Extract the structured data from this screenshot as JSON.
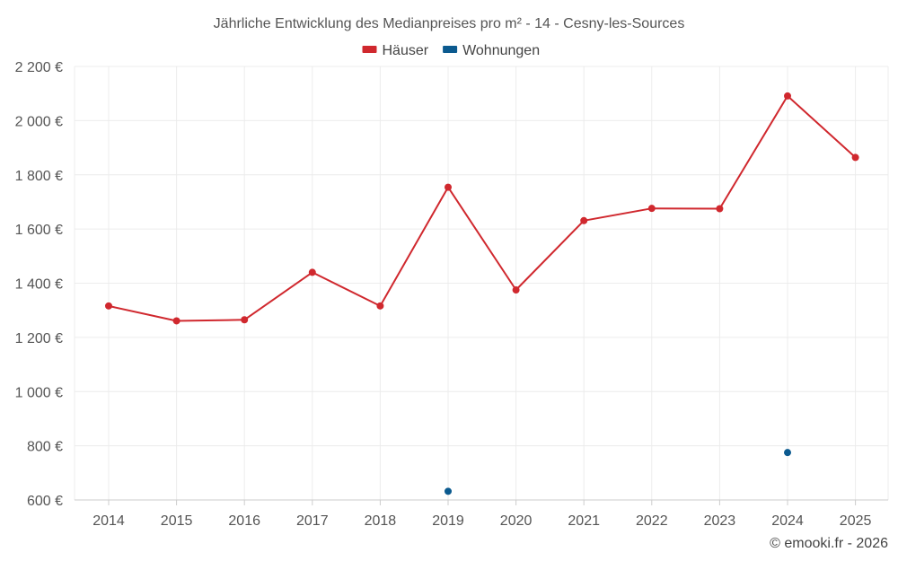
{
  "chart_data": {
    "type": "line",
    "title": "Jährliche Entwicklung des Medianpreises pro m² - 14 - Cesny-les-Sources",
    "x": [
      "2014",
      "2015",
      "2016",
      "2017",
      "2018",
      "2019",
      "2020",
      "2021",
      "2022",
      "2023",
      "2024",
      "2025"
    ],
    "ylim": [
      600,
      2200
    ],
    "yticks": [
      600,
      800,
      1000,
      1200,
      1400,
      1600,
      1800,
      2000,
      2200
    ],
    "ytick_labels": [
      "600 €",
      "800 €",
      "1 000 €",
      "1 200 €",
      "1 400 €",
      "1 600 €",
      "1 800 €",
      "2 000 €",
      "2 200 €"
    ],
    "grid": true,
    "legend_position": "top-center",
    "series": [
      {
        "name": "Häuser",
        "color": "#d0282e",
        "values": [
          1316,
          1261,
          1265,
          1440,
          1316,
          1754,
          1375,
          1631,
          1676,
          1675,
          2091,
          1864
        ]
      },
      {
        "name": "Wohnungen",
        "color": "#0b5a8f",
        "values": [
          null,
          null,
          null,
          null,
          null,
          632,
          null,
          null,
          null,
          null,
          775,
          null
        ]
      }
    ]
  },
  "credit": "© emooki.fr - 2026"
}
